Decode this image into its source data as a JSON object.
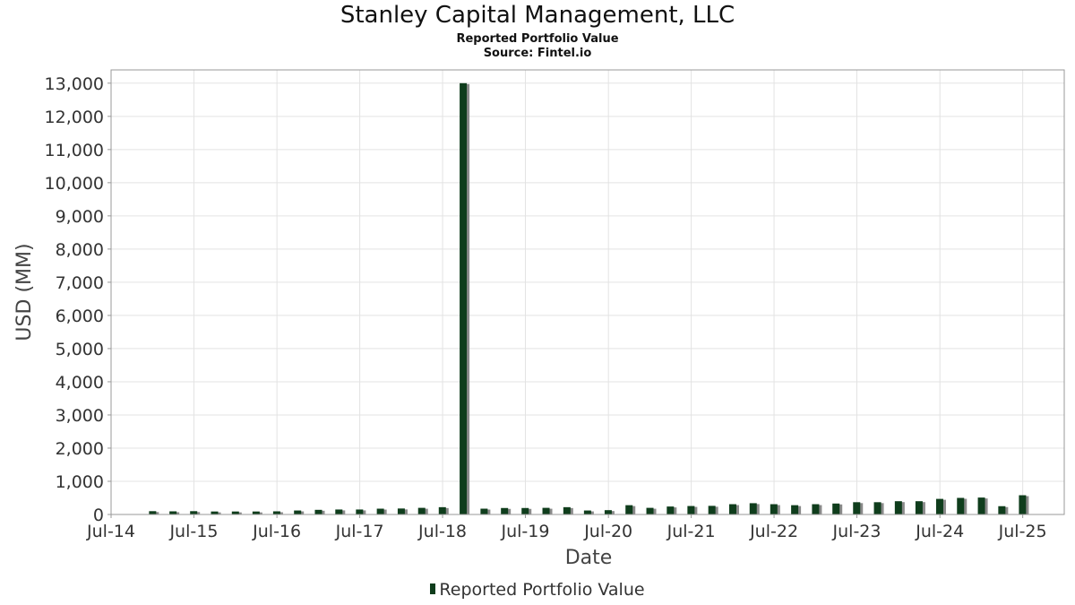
{
  "chart_data": {
    "type": "bar",
    "title": "Stanley Capital Management, LLC",
    "subtitle": [
      "Reported Portfolio Value",
      "Source: Fintel.io"
    ],
    "xlabel": "Date",
    "ylabel": "USD (MM)",
    "ylim": [
      0,
      13400
    ],
    "yticks": [
      0,
      1000,
      2000,
      3000,
      4000,
      5000,
      6000,
      7000,
      8000,
      9000,
      10000,
      11000,
      12000,
      13000
    ],
    "ytick_labels": [
      "0",
      "1,000",
      "2,000",
      "3,000",
      "4,000",
      "5,000",
      "6,000",
      "7,000",
      "8,000",
      "9,000",
      "10,000",
      "11,000",
      "12,000",
      "13,000"
    ],
    "xlim": [
      "2014-07-01",
      "2025-12-31"
    ],
    "xticks": [
      "2014-07-01",
      "2015-07-01",
      "2016-07-01",
      "2017-07-01",
      "2018-07-01",
      "2019-07-01",
      "2020-07-01",
      "2021-07-01",
      "2022-07-01",
      "2023-07-01",
      "2024-07-01",
      "2025-07-01"
    ],
    "xtick_labels": [
      "Jul-14",
      "Jul-15",
      "Jul-16",
      "Jul-17",
      "Jul-18",
      "Jul-19",
      "Jul-20",
      "Jul-21",
      "Jul-22",
      "Jul-23",
      "Jul-24",
      "Jul-25"
    ],
    "grid": true,
    "legend": "bottom-center",
    "bar_color": "#0f3d1c",
    "bar_shadow_color": "#8a8a8a",
    "series": [
      {
        "name": "Reported Portfolio Value",
        "x": [
          "2014-12-31",
          "2015-03-31",
          "2015-06-30",
          "2015-09-30",
          "2015-12-31",
          "2016-03-31",
          "2016-06-30",
          "2016-09-30",
          "2016-12-31",
          "2017-03-31",
          "2017-06-30",
          "2017-09-30",
          "2017-12-31",
          "2018-03-31",
          "2018-06-30",
          "2018-09-30",
          "2018-12-31",
          "2019-03-31",
          "2019-06-30",
          "2019-09-30",
          "2019-12-31",
          "2020-03-31",
          "2020-06-30",
          "2020-09-30",
          "2020-12-31",
          "2021-03-31",
          "2021-06-30",
          "2021-09-30",
          "2021-12-31",
          "2022-03-31",
          "2022-06-30",
          "2022-09-30",
          "2022-12-31",
          "2023-03-31",
          "2023-06-30",
          "2023-09-30",
          "2023-12-31",
          "2024-03-31",
          "2024-06-30",
          "2024-09-30",
          "2024-12-31",
          "2025-03-31",
          "2025-06-30"
        ],
        "values": [
          100,
          95,
          100,
          90,
          90,
          90,
          95,
          120,
          140,
          150,
          150,
          175,
          180,
          200,
          220,
          13000,
          175,
          195,
          195,
          200,
          220,
          120,
          130,
          280,
          200,
          240,
          255,
          260,
          310,
          340,
          310,
          280,
          310,
          330,
          370,
          370,
          400,
          400,
          470,
          500,
          510,
          250,
          580
        ]
      }
    ]
  }
}
